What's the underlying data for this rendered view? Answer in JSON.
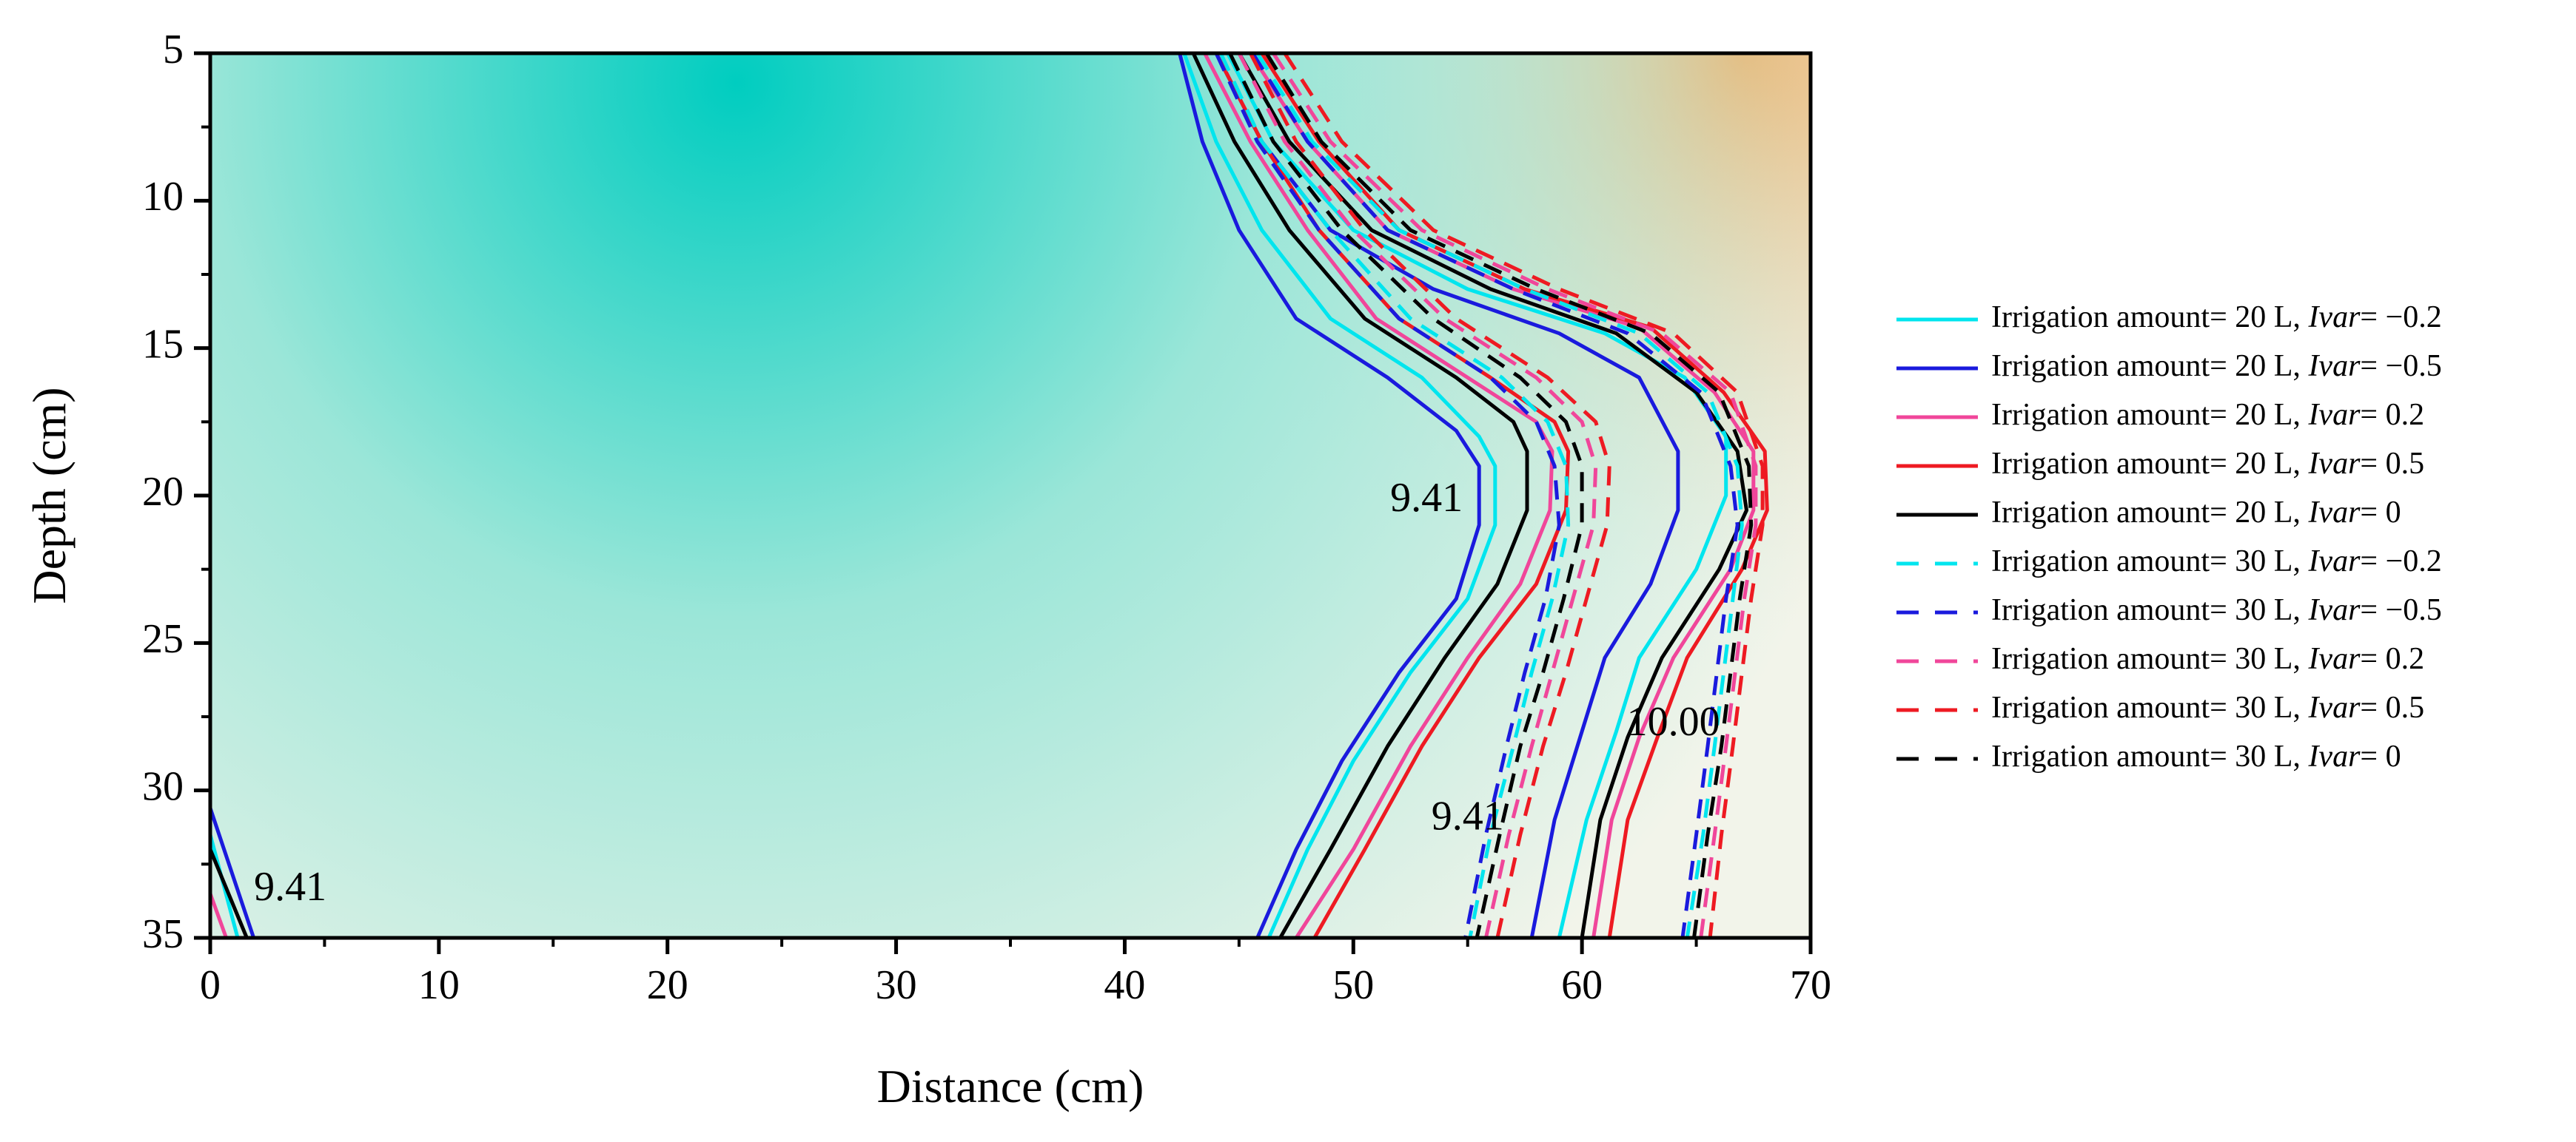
{
  "chart_data": {
    "type": "contour",
    "title": "",
    "xlabel": "Distance (cm)",
    "ylabel": "Depth (cm)",
    "xlim": [
      0,
      70
    ],
    "ylim": [
      5,
      35
    ],
    "y_inverted": true,
    "x_ticks": [
      0,
      10,
      20,
      30,
      40,
      50,
      60,
      70
    ],
    "y_ticks": [
      5,
      10,
      15,
      20,
      25,
      30,
      35
    ],
    "x_tick_labels": [
      "0",
      "10",
      "20",
      "30",
      "40",
      "50",
      "60",
      "70"
    ],
    "y_tick_labels": [
      "5",
      "10",
      "15",
      "20",
      "25",
      "30",
      "35"
    ],
    "colors": {
      "wet_core": "#00CDC0",
      "mid": "#9BE6D8",
      "neutral": "#F2F4EA",
      "dry": "#FFB066"
    },
    "field": {
      "wet_center": [
        23,
        6
      ],
      "wet_rx": 52,
      "wet_ry": 42,
      "dry_center": [
        67,
        5
      ]
    },
    "contour_labels": [
      {
        "text": "9.41",
        "x": 53.2,
        "y": 20.2
      },
      {
        "text": "9.41",
        "x": 55.0,
        "y": 31.0
      },
      {
        "text": "9.41",
        "x": 3.5,
        "y": 33.4
      },
      {
        "text": "10.00",
        "x": 64.0,
        "y": 27.8
      }
    ],
    "series": [
      {
        "name": "Irrigation amount= 20 L, ",
        "ivar": "Ivar",
        "ivar_value": "= −0.2",
        "color": "#00E5EE",
        "dash": "solid",
        "line_a": [
          [
            42.6,
            5
          ],
          [
            44,
            8
          ],
          [
            46,
            11
          ],
          [
            49,
            14
          ],
          [
            53,
            16
          ],
          [
            55.5,
            18
          ],
          [
            56.2,
            19
          ],
          [
            56.2,
            21
          ],
          [
            55,
            23.5
          ],
          [
            52.5,
            26
          ],
          [
            50,
            29
          ],
          [
            48,
            32
          ],
          [
            46.3,
            35
          ]
        ],
        "line_b": [
          [
            44.5,
            5
          ],
          [
            46.5,
            8
          ],
          [
            50,
            11
          ],
          [
            55,
            13
          ],
          [
            61,
            14.5
          ],
          [
            64.5,
            16
          ],
          [
            66.3,
            18
          ],
          [
            66.3,
            20
          ],
          [
            65,
            22.5
          ],
          [
            62.5,
            25.5
          ],
          [
            61.5,
            28
          ],
          [
            60.2,
            31
          ],
          [
            59,
            35
          ]
        ],
        "line_c": [
          [
            0,
            31.5
          ],
          [
            1.2,
            35
          ]
        ]
      },
      {
        "name": "Irrigation amount= 20 L, ",
        "ivar": "Ivar",
        "ivar_value": "= −0.5",
        "color": "#1A1ADD",
        "dash": "solid",
        "line_a": [
          [
            42.4,
            5
          ],
          [
            43.4,
            8
          ],
          [
            45,
            11
          ],
          [
            47.5,
            14
          ],
          [
            51.5,
            16
          ],
          [
            54.5,
            17.8
          ],
          [
            55.5,
            19
          ],
          [
            55.5,
            21
          ],
          [
            54.5,
            23.5
          ],
          [
            52,
            26
          ],
          [
            49.5,
            29
          ],
          [
            47.5,
            32
          ],
          [
            45.8,
            35
          ]
        ],
        "line_b": [
          [
            44,
            5
          ],
          [
            46,
            8
          ],
          [
            49,
            11
          ],
          [
            53.5,
            13
          ],
          [
            59,
            14.5
          ],
          [
            62.5,
            16
          ],
          [
            64.2,
            18.5
          ],
          [
            64.2,
            20.5
          ],
          [
            63,
            23
          ],
          [
            61,
            25.5
          ],
          [
            60,
            28
          ],
          [
            58.8,
            31
          ],
          [
            57.8,
            35
          ]
        ],
        "line_c": [
          [
            0,
            30.6
          ],
          [
            1.9,
            35
          ]
        ]
      },
      {
        "name": "Irrigation amount= 20 L, ",
        "ivar": "Ivar",
        "ivar_value": "= 0.2",
        "color": "#F0469A",
        "dash": "solid",
        "line_a": [
          [
            43.5,
            5
          ],
          [
            45.5,
            8
          ],
          [
            48,
            11
          ],
          [
            51,
            14
          ],
          [
            55,
            16
          ],
          [
            58,
            17.5
          ],
          [
            58.7,
            18.5
          ],
          [
            58.6,
            20.5
          ],
          [
            57.3,
            23
          ],
          [
            55,
            25.5
          ],
          [
            52.5,
            28.5
          ],
          [
            50,
            32
          ],
          [
            47.5,
            35
          ]
        ],
        "line_b": [
          [
            45.5,
            5
          ],
          [
            48,
            8
          ],
          [
            51.5,
            11
          ],
          [
            57,
            13
          ],
          [
            62.5,
            14.3
          ],
          [
            65.8,
            16.5
          ],
          [
            67.5,
            18.5
          ],
          [
            67.5,
            20.5
          ],
          [
            66.5,
            22.5
          ],
          [
            64,
            25.5
          ],
          [
            62.5,
            28.2
          ],
          [
            61.3,
            31
          ],
          [
            60.5,
            35
          ]
        ],
        "line_c": [
          [
            0,
            33.5
          ],
          [
            0.7,
            35
          ]
        ]
      },
      {
        "name": "Irrigation amount= 20 L, ",
        "ivar": "Ivar",
        "ivar_value": "= 0.5",
        "color": "#EE1A22",
        "dash": "solid",
        "line_a": [
          [
            44,
            5
          ],
          [
            46,
            8
          ],
          [
            48.5,
            11
          ],
          [
            52,
            14
          ],
          [
            56,
            16
          ],
          [
            58.8,
            17.5
          ],
          [
            59.4,
            18.5
          ],
          [
            59.3,
            20.5
          ],
          [
            58,
            23
          ],
          [
            55.5,
            25.5
          ],
          [
            53,
            28.5
          ],
          [
            50.5,
            32
          ],
          [
            48.3,
            35
          ]
        ],
        "line_b": [
          [
            46,
            5
          ],
          [
            48.5,
            8
          ],
          [
            52,
            11
          ],
          [
            57.5,
            13
          ],
          [
            63,
            14.3
          ],
          [
            66.2,
            16.5
          ],
          [
            68,
            18.5
          ],
          [
            68.1,
            20.5
          ],
          [
            67,
            22.5
          ],
          [
            64.6,
            25.5
          ],
          [
            63.3,
            28.2
          ],
          [
            62,
            31
          ],
          [
            61.2,
            35
          ]
        ],
        "line_c": []
      },
      {
        "name": "Irrigation amount= 20 L, ",
        "ivar": "Ivar",
        "ivar_value": "= 0",
        "color": "#000000",
        "dash": "solid",
        "line_a": [
          [
            43,
            5
          ],
          [
            44.8,
            8
          ],
          [
            47.2,
            11
          ],
          [
            50.5,
            14
          ],
          [
            54.5,
            16
          ],
          [
            57,
            17.5
          ],
          [
            57.6,
            18.5
          ],
          [
            57.6,
            20.5
          ],
          [
            56.3,
            23
          ],
          [
            54,
            25.5
          ],
          [
            51.5,
            28.5
          ],
          [
            49,
            32
          ],
          [
            46.8,
            35
          ]
        ],
        "line_b": [
          [
            45,
            5
          ],
          [
            47.2,
            8
          ],
          [
            50.8,
            11
          ],
          [
            56,
            13
          ],
          [
            61.5,
            14.5
          ],
          [
            65,
            16.5
          ],
          [
            66.8,
            18.5
          ],
          [
            67.2,
            20.5
          ],
          [
            66,
            22.5
          ],
          [
            63.5,
            25.5
          ],
          [
            62,
            28.2
          ],
          [
            60.8,
            31
          ],
          [
            60,
            35
          ]
        ],
        "line_c": [
          [
            0,
            32
          ],
          [
            1.6,
            35
          ]
        ]
      },
      {
        "name": "Irrigation amount= 30 L, ",
        "ivar": "Ivar",
        "ivar_value": "= −0.2",
        "color": "#00E5EE",
        "dash": "dashed",
        "line_a": [
          [
            44.2,
            5
          ],
          [
            46,
            8
          ],
          [
            49,
            11
          ],
          [
            52.5,
            14
          ],
          [
            56.5,
            16
          ],
          [
            58.5,
            17.5
          ],
          [
            59.3,
            19
          ],
          [
            59.4,
            21
          ],
          [
            58.7,
            23.5
          ],
          [
            57.8,
            26
          ],
          [
            57,
            28.5
          ],
          [
            56,
            31.5
          ],
          [
            55.1,
            35
          ]
        ],
        "line_b": [
          [
            45.8,
            5
          ],
          [
            48.2,
            8
          ],
          [
            52,
            11
          ],
          [
            57.5,
            13
          ],
          [
            62.5,
            14.5
          ],
          [
            65.5,
            16.5
          ],
          [
            66.8,
            19
          ],
          [
            67,
            21
          ],
          [
            66.6,
            23.5
          ],
          [
            66.2,
            26
          ],
          [
            65.8,
            28.5
          ],
          [
            65.3,
            31.5
          ],
          [
            64.6,
            35
          ]
        ],
        "line_c": []
      },
      {
        "name": "Irrigation amount= 30 L, ",
        "ivar": "Ivar",
        "ivar_value": "= −0.5",
        "color": "#1A1ADD",
        "dash": "dashed",
        "line_a": [
          [
            44,
            5
          ],
          [
            45.8,
            8
          ],
          [
            48.5,
            11
          ],
          [
            52,
            14
          ],
          [
            56,
            16
          ],
          [
            58,
            17.5
          ],
          [
            58.8,
            19
          ],
          [
            59,
            21
          ],
          [
            58.4,
            23.5
          ],
          [
            57.5,
            26
          ],
          [
            56.7,
            28.5
          ],
          [
            55.8,
            31.5
          ],
          [
            54.9,
            35
          ]
        ],
        "line_b": [
          [
            45.6,
            5
          ],
          [
            48,
            8
          ],
          [
            51.5,
            11
          ],
          [
            57,
            13
          ],
          [
            62,
            14.5
          ],
          [
            65.2,
            16.5
          ],
          [
            66.5,
            19
          ],
          [
            66.8,
            21
          ],
          [
            66.3,
            23.5
          ],
          [
            65.9,
            26
          ],
          [
            65.5,
            28.5
          ],
          [
            65,
            31.5
          ],
          [
            64.4,
            35
          ]
        ],
        "line_c": []
      },
      {
        "name": "Irrigation amount= 30 L, ",
        "ivar": "Ivar",
        "ivar_value": "= 0.2",
        "color": "#F0469A",
        "dash": "dashed",
        "line_a": [
          [
            45,
            5
          ],
          [
            47,
            8
          ],
          [
            50,
            11
          ],
          [
            54,
            14
          ],
          [
            58,
            16
          ],
          [
            60,
            17.5
          ],
          [
            60.6,
            19
          ],
          [
            60.5,
            21
          ],
          [
            59.6,
            23.5
          ],
          [
            58.7,
            26
          ],
          [
            57.8,
            28.5
          ],
          [
            56.8,
            31.5
          ],
          [
            55.8,
            35
          ]
        ],
        "line_b": [
          [
            46.5,
            5
          ],
          [
            49,
            8
          ],
          [
            53,
            11
          ],
          [
            58.5,
            13
          ],
          [
            63.5,
            14.5
          ],
          [
            66.5,
            16.5
          ],
          [
            67.6,
            19
          ],
          [
            67.6,
            21
          ],
          [
            67.1,
            23.5
          ],
          [
            66.7,
            26
          ],
          [
            66.3,
            28.5
          ],
          [
            65.8,
            31.5
          ],
          [
            65.2,
            35
          ]
        ],
        "line_c": []
      },
      {
        "name": "Irrigation amount= 30 L, ",
        "ivar": "Ivar",
        "ivar_value": "= 0.5",
        "color": "#EE1A22",
        "dash": "dashed",
        "line_a": [
          [
            45.5,
            5
          ],
          [
            47.5,
            8
          ],
          [
            50.5,
            11
          ],
          [
            54.5,
            14
          ],
          [
            58.5,
            16
          ],
          [
            60.6,
            17.5
          ],
          [
            61.2,
            19
          ],
          [
            61.1,
            21
          ],
          [
            60.2,
            23.5
          ],
          [
            59.3,
            26
          ],
          [
            58.3,
            28.5
          ],
          [
            57.3,
            31.5
          ],
          [
            56.3,
            35
          ]
        ],
        "line_b": [
          [
            47,
            5
          ],
          [
            49.5,
            8
          ],
          [
            53.5,
            11
          ],
          [
            59,
            13
          ],
          [
            64,
            14.5
          ],
          [
            66.8,
            16.5
          ],
          [
            67.9,
            19
          ],
          [
            67.9,
            21
          ],
          [
            67.4,
            23.5
          ],
          [
            67,
            26
          ],
          [
            66.6,
            28.5
          ],
          [
            66.1,
            31.5
          ],
          [
            65.6,
            35
          ]
        ],
        "line_c": []
      },
      {
        "name": "Irrigation amount= 30 L, ",
        "ivar": "Ivar",
        "ivar_value": "= 0",
        "color": "#000000",
        "dash": "dashed",
        "line_a": [
          [
            44.6,
            5
          ],
          [
            46.5,
            8
          ],
          [
            49.5,
            11
          ],
          [
            53.5,
            14
          ],
          [
            57.3,
            16
          ],
          [
            59.3,
            17.5
          ],
          [
            60,
            19
          ],
          [
            60,
            21
          ],
          [
            59.2,
            23.5
          ],
          [
            58.3,
            26
          ],
          [
            57.3,
            28.5
          ],
          [
            56.4,
            31.5
          ],
          [
            55.4,
            35
          ]
        ],
        "line_b": [
          [
            46.2,
            5
          ],
          [
            48.6,
            8
          ],
          [
            52.5,
            11
          ],
          [
            58,
            13
          ],
          [
            63,
            14.5
          ],
          [
            66,
            16.5
          ],
          [
            67.3,
            19
          ],
          [
            67.4,
            21
          ],
          [
            66.9,
            23.5
          ],
          [
            66.5,
            26
          ],
          [
            66.1,
            28.5
          ],
          [
            65.5,
            31.5
          ],
          [
            64.9,
            35
          ]
        ],
        "line_c": []
      }
    ]
  }
}
